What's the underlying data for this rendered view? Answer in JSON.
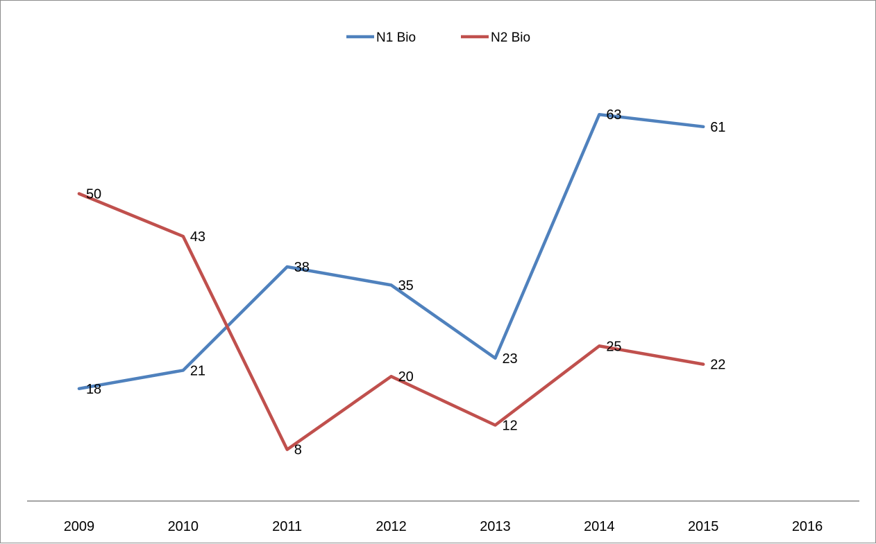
{
  "chart_data": {
    "type": "line",
    "categories": [
      "2009",
      "2010",
      "2011",
      "2012",
      "2013",
      "2014",
      "2015",
      "2016"
    ],
    "series": [
      {
        "name": "N1 Bio",
        "color": "#4f81bd",
        "values": [
          18,
          21,
          38,
          35,
          23,
          63,
          61,
          null
        ]
      },
      {
        "name": "N2 Bio",
        "color": "#c0504d",
        "values": [
          50,
          43,
          8,
          20,
          12,
          25,
          22,
          null
        ]
      }
    ],
    "title": "",
    "xlabel": "",
    "ylabel": "",
    "ylim": [
      0,
      65
    ],
    "grid": false,
    "legend_position": "top",
    "data_labels": true,
    "axis_color": "#868686"
  }
}
